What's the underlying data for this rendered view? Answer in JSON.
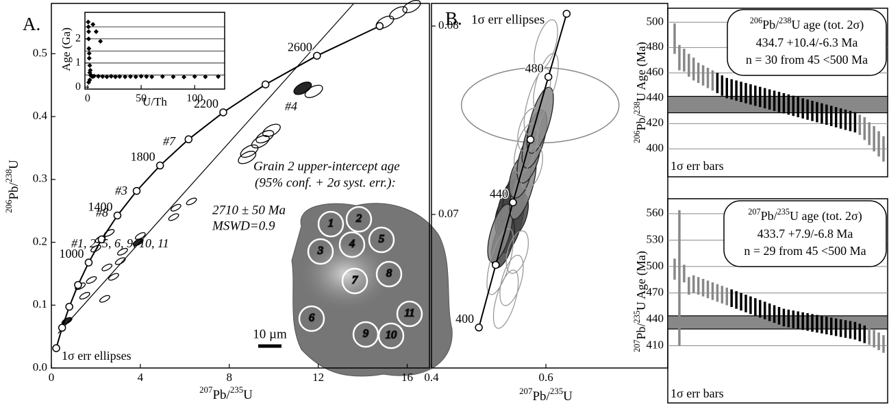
{
  "chart_data": [
    {
      "type": "concordia",
      "panel_label": "A.",
      "xlim": [
        0,
        17
      ],
      "ylim": [
        0,
        0.58
      ],
      "xticks": [
        0,
        4,
        8,
        12,
        16
      ],
      "yticks": [
        {
          "value": 0,
          "label": "0.0"
        },
        0.1,
        0.2,
        0.3,
        0.4,
        0.5
      ],
      "x_label": [
        "207",
        "Pb/",
        "235",
        "U"
      ],
      "y_label": [
        "206",
        "Pb/",
        "238",
        "U"
      ],
      "concordia": {
        "x": [
          0.2177,
          0.4828,
          0.8056,
          1.1987,
          1.6774,
          2.2603,
          2.97,
          3.8346,
          4.8868,
          6.1685,
          7.7291,
          9.629,
          11.944,
          14.762
        ],
        "y": [
          0.0315,
          0.064,
          0.0975,
          0.1321,
          0.1678,
          0.2046,
          0.2426,
          0.2817,
          0.3221,
          0.3638,
          0.4067,
          0.4511,
          0.4968,
          0.544
        ],
        "labels": [
          null,
          null,
          null,
          null,
          1000,
          null,
          1400,
          null,
          1800,
          null,
          2200,
          null,
          2600,
          null
        ]
      },
      "discordia": {
        "x": [
          0.3,
          13.6
        ],
        "y": [
          0.055,
          0.58
        ]
      },
      "ellipses": {
        "x": [
          11.3,
          11.8,
          9.4,
          9.6,
          9.9,
          8.9,
          8.8,
          5.6,
          5.5,
          6.3,
          4.0,
          3.9,
          3.2,
          2.5,
          2.2,
          2.0,
          2.6,
          1.8,
          1.5,
          2.8,
          0.7,
          15.0,
          15.6,
          16.2,
          1.3,
          2.4,
          3.1
        ],
        "y": [
          0.445,
          0.44,
          0.36,
          0.368,
          0.378,
          0.345,
          0.335,
          0.255,
          0.24,
          0.265,
          0.21,
          0.2,
          0.185,
          0.16,
          0.205,
          0.19,
          0.215,
          0.14,
          0.115,
          0.145,
          0.075,
          0.55,
          0.565,
          0.575,
          0.13,
          0.11,
          0.17
        ],
        "colors": [
          "#000",
          "none",
          "none",
          "none",
          "none",
          "none",
          "none",
          "none",
          "none",
          "none",
          "none",
          "#000",
          "none",
          "none",
          "none",
          "none",
          "none",
          "none",
          "none",
          "none",
          "#000",
          "none",
          "none",
          "none",
          "none",
          "none",
          "none"
        ]
      },
      "annotations": [
        "#4",
        "#7",
        "#3",
        "#8",
        "#1, 2, 5, 6, 9, 10, 11",
        "1σ err ellipses"
      ],
      "intercept_note": [
        "Grain 2 upper-intercept age",
        "(95% conf. + 2σ syst. err.):",
        "2710 ± 50 Ma",
        "MSWD=0.9"
      ],
      "scale_bar": "10 µm",
      "spot_labels": [
        "1",
        "2",
        "3",
        "4",
        "5",
        "6",
        "7",
        "8",
        "9",
        "10",
        "11"
      ]
    },
    {
      "type": "scatter",
      "xlim": [
        -2.5,
        128
      ],
      "ylim": [
        -0.08,
        3.1
      ],
      "xticks": [
        0,
        50,
        100
      ],
      "yticks": [
        0,
        1,
        2
      ],
      "grid_lines": [
        0.5,
        1,
        1.5,
        2,
        2.5
      ],
      "x_label": "U/Th",
      "y_label": "Age (Ga)",
      "x": [
        0.5,
        0.8,
        1,
        1.2,
        1.5,
        2,
        2.5,
        3,
        4,
        5,
        1,
        1.5,
        2,
        3,
        6,
        10,
        14,
        18,
        22,
        26,
        30,
        35,
        40,
        45,
        50,
        55,
        60,
        70,
        80,
        90,
        100,
        110,
        122,
        5,
        8,
        12,
        2,
        1
      ],
      "y": [
        2.7,
        2.5,
        2.3,
        1.6,
        1.2,
        0.9,
        0.7,
        0.5,
        0.45,
        0.44,
        2.0,
        1.4,
        0.6,
        0.48,
        0.46,
        0.45,
        0.44,
        0.43,
        0.45,
        0.43,
        0.44,
        0.43,
        0.44,
        0.43,
        0.45,
        0.44,
        0.43,
        0.44,
        0.43,
        0.42,
        0.44,
        0.43,
        0.44,
        2.6,
        2.3,
        1.9,
        0.3,
        0.2
      ]
    },
    {
      "type": "concordia",
      "panel_label": "B.",
      "xlim": [
        0.4,
        0.813
      ],
      "ylim": [
        0.06185,
        0.0812
      ],
      "xticks": [
        0.4,
        0.6
      ],
      "yticks": [
        0.07,
        0.08
      ],
      "x_label": [
        "207",
        "Pb/",
        "235",
        "U"
      ],
      "concordia": {
        "x": [
          0.4828,
          0.5123,
          0.5424,
          0.5731,
          0.6043,
          0.6362
        ],
        "y": [
          0.064,
          0.06732,
          0.07064,
          0.07397,
          0.0773,
          0.08065
        ],
        "labels": [
          400,
          null,
          440,
          null,
          480,
          null
        ]
      },
      "outlier": {
        "x": 0.59,
        "y": 0.0758
      },
      "ellipses": {
        "x": [
          0.53,
          0.535,
          0.54,
          0.545,
          0.55,
          0.525,
          0.52,
          0.56,
          0.555,
          0.57,
          0.58,
          0.59,
          0.575,
          0.565,
          0.6,
          0.585,
          0.55,
          0.54,
          0.53,
          0.52,
          0.57,
          0.6
        ],
        "y": [
          0.07,
          0.0705,
          0.0695,
          0.071,
          0.07,
          0.0685,
          0.069,
          0.0715,
          0.072,
          0.073,
          0.074,
          0.075,
          0.0725,
          0.0735,
          0.077,
          0.076,
          0.068,
          0.0665,
          0.0655,
          0.0675,
          0.0745,
          0.079
        ],
        "colors": [
          "#444",
          "#444",
          "#444",
          "#444",
          "#444",
          "#444",
          "#888",
          "#888",
          "#888",
          "#888",
          "#888",
          "#888",
          "none",
          "none",
          "none",
          "none",
          "none",
          "none",
          "none",
          "none",
          "none",
          "none"
        ]
      },
      "annotations": [
        "1σ err ellipses"
      ]
    },
    {
      "type": "ranked_bars",
      "ylim": [
        378,
        511
      ],
      "yticks": [
        400,
        420,
        440,
        460,
        480,
        500
      ],
      "grid": true,
      "y_label": [
        "206",
        "Pb/",
        "238",
        "U Age (Ma)"
      ],
      "band": [
        428.5,
        441.5
      ],
      "values": [
        487,
        472,
        470,
        466,
        463,
        460,
        458,
        456,
        454,
        452,
        450,
        448,
        447,
        446,
        445,
        444,
        443,
        442,
        441,
        440,
        439,
        438,
        437,
        436,
        435,
        434,
        433,
        432,
        431,
        430,
        429,
        428,
        427,
        426,
        425,
        424,
        423,
        422,
        421,
        419,
        416,
        412,
        408,
        404,
        400
      ],
      "errors": [
        12,
        10,
        9,
        9,
        9,
        8,
        8,
        8,
        8,
        8,
        8,
        8,
        8,
        8,
        8,
        8,
        8,
        8,
        8,
        8,
        8,
        8,
        8,
        8,
        8,
        8,
        8,
        8,
        8,
        8,
        8,
        8,
        8,
        8,
        8,
        8,
        8,
        8,
        8,
        8,
        9,
        9,
        10,
        10,
        10
      ],
      "colors": [
        "#888",
        "#888",
        "#888",
        "#888",
        "#888",
        "#888",
        "#888",
        "#888",
        "#888",
        "#000",
        "#000",
        "#000",
        "#000",
        "#000",
        "#000",
        "#000",
        "#000",
        "#000",
        "#000",
        "#000",
        "#000",
        "#000",
        "#000",
        "#000",
        "#000",
        "#000",
        "#000",
        "#000",
        "#000",
        "#000",
        "#000",
        "#000",
        "#000",
        "#000",
        "#000",
        "#000",
        "#000",
        "#000",
        "#000",
        "#888",
        "#888",
        "#888",
        "#888",
        "#888",
        "#888"
      ],
      "box_title": [
        "206",
        "Pb/",
        "238",
        "U age (tot. 2σ)"
      ],
      "box_lines": [
        "434.7 +10.4/-6.3 Ma",
        "n = 30 from 45 <500 Ma"
      ],
      "note": "1σ err bars"
    },
    {
      "type": "ranked_bars",
      "ylim": [
        345,
        577
      ],
      "yticks": [
        410,
        440,
        470,
        500,
        530,
        560
      ],
      "grid": true,
      "y_label": [
        "207",
        "Pb/",
        "235",
        "U Age (Ma)"
      ],
      "band": [
        429,
        444
      ],
      "values": [
        497,
        487,
        492,
        478,
        480,
        478,
        476,
        474,
        472,
        470,
        468,
        466,
        464,
        462,
        460,
        458,
        456,
        454,
        452,
        450,
        448,
        446,
        444,
        442,
        441,
        440,
        439,
        438,
        437,
        436,
        435,
        434,
        433,
        432,
        431,
        430,
        429,
        428,
        427,
        425,
        423,
        421,
        418,
        415,
        412
      ],
      "errors": [
        12,
        77,
        10,
        10,
        10,
        10,
        10,
        10,
        10,
        10,
        10,
        10,
        10,
        10,
        10,
        10,
        10,
        10,
        10,
        10,
        10,
        10,
        10,
        10,
        10,
        10,
        10,
        10,
        10,
        10,
        10,
        10,
        10,
        10,
        10,
        10,
        10,
        10,
        10,
        10,
        10,
        10,
        10,
        10,
        10
      ],
      "colors": [
        "#888",
        "#888",
        "#888",
        "#888",
        "#888",
        "#888",
        "#888",
        "#888",
        "#888",
        "#888",
        "#888",
        "#888",
        "#000",
        "#000",
        "#000",
        "#000",
        "#000",
        "#000",
        "#000",
        "#000",
        "#000",
        "#000",
        "#000",
        "#000",
        "#000",
        "#000",
        "#000",
        "#000",
        "#000",
        "#000",
        "#000",
        "#000",
        "#000",
        "#000",
        "#000",
        "#000",
        "#000",
        "#000",
        "#000",
        "#000",
        "#000",
        "#888",
        "#888",
        "#888",
        "#888"
      ],
      "box_title": [
        "207",
        "Pb/",
        "235",
        "U age (tot. 2σ)"
      ],
      "box_lines": [
        "433.7 +7.9/-6.8 Ma",
        "n = 29 from 45 <500 Ma"
      ],
      "note": "1σ err bars"
    }
  ]
}
